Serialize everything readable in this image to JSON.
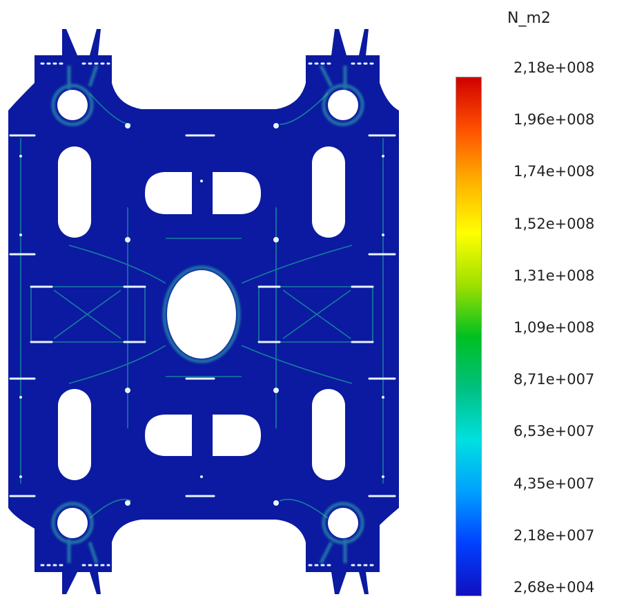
{
  "colors": {
    "plate": "#0b1aa0",
    "stress_high": "#20d0a0",
    "stress_mid": "#6fe0ff",
    "marker": "#e8f4ff",
    "background": "#ffffff"
  },
  "legend": {
    "unit": "N_m2",
    "colorbar_stops": [
      "#d00000",
      "#ff5000",
      "#ffb000",
      "#ffff00",
      "#a0e000",
      "#00c020",
      "#00c080",
      "#00e0e0",
      "#00a0ff",
      "#0040ff",
      "#1010c0"
    ],
    "ticks": [
      "2,18e+008",
      "1,96e+008",
      "1,74e+008",
      "1,52e+008",
      "1,31e+008",
      "1,09e+008",
      "8,71e+007",
      "6,53e+007",
      "4,35e+007",
      "2,18e+007",
      "2,68e+004"
    ]
  }
}
